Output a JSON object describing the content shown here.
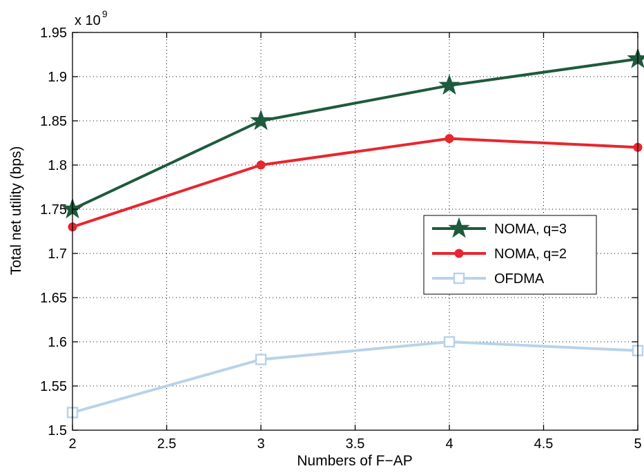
{
  "chart_data": {
    "type": "line",
    "xlabel": "Numbers of F−AP",
    "ylabel": "Total net utility (bps)",
    "y_multiplier_base": "x 10",
    "y_multiplier_exp": "9",
    "xlim": [
      2,
      5
    ],
    "ylim": [
      1.5,
      1.95
    ],
    "x_ticks": [
      2,
      2.5,
      3,
      3.5,
      4,
      4.5,
      5
    ],
    "x_tick_labels": [
      "2",
      "2.5",
      "3",
      "3.5",
      "4",
      "4.5",
      "5"
    ],
    "y_ticks": [
      1.5,
      1.55,
      1.6,
      1.65,
      1.7,
      1.75,
      1.8,
      1.85,
      1.9,
      1.95
    ],
    "y_tick_labels": [
      "1.5",
      "1.55",
      "1.6",
      "1.65",
      "1.7",
      "1.75",
      "1.8",
      "1.85",
      "1.9",
      "1.95"
    ],
    "grid": true,
    "legend_position": "center-right",
    "x": [
      2,
      3,
      4,
      5
    ],
    "series": [
      {
        "name": "NOMA, q=3",
        "values": [
          1.75,
          1.85,
          1.89,
          1.92
        ],
        "color": "#1e5a3c",
        "marker": "star"
      },
      {
        "name": "NOMA, q=2",
        "values": [
          1.73,
          1.8,
          1.83,
          1.82
        ],
        "color": "#e8262d",
        "marker": "circle"
      },
      {
        "name": "OFDMA",
        "values": [
          1.52,
          1.58,
          1.6,
          1.59
        ],
        "color": "#b8d3ea",
        "marker": "square"
      }
    ]
  }
}
